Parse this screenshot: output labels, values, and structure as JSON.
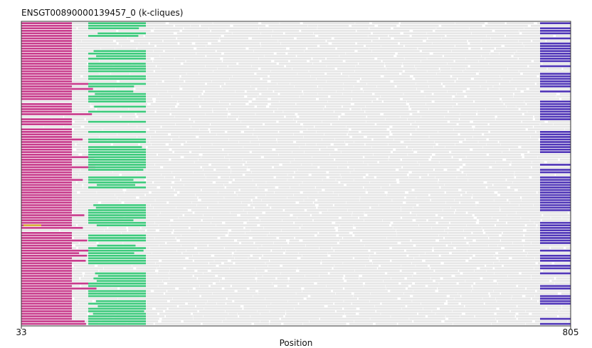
{
  "chart_data": {
    "type": "alignment",
    "title": "ENSGT00890000139457_0 (k-cliques)",
    "xlabel": "Position",
    "ylabel": "",
    "xlim": [
      33,
      805
    ],
    "x_ticks": [
      33,
      805
    ],
    "n_sequences": 120,
    "grid": false,
    "legend": "none",
    "colors": {
      "background_segment": "#e6e6e6",
      "clique_magenta": "#c83b8c",
      "clique_green": "#3dca7c",
      "clique_purple": "#5036b8",
      "clique_gold": "#d8b23a"
    },
    "cliques": [
      {
        "color": "clique_magenta",
        "x_start": 33,
        "x_end": 104
      },
      {
        "color": "clique_green",
        "x_start": 127,
        "x_end": 208
      },
      {
        "color": "clique_purple",
        "x_start": 762,
        "x_end": 805
      }
    ]
  }
}
